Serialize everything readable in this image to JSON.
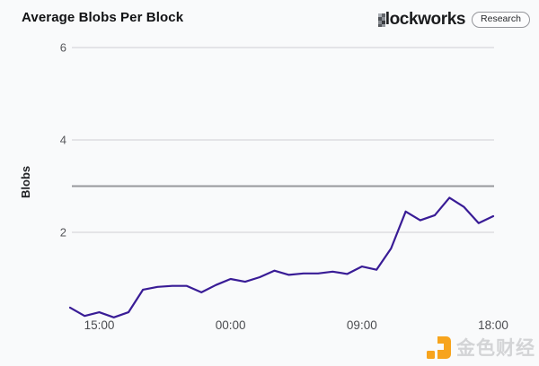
{
  "header": {
    "title": "Average Blobs Per Block",
    "brand": "Blockworks",
    "badge": "Research"
  },
  "watermark": {
    "text": "金色财经"
  },
  "colors": {
    "line": "#391c96",
    "grid": "#d7d8db",
    "reference_line": "#97989c",
    "axis_text": "#55565a",
    "background": "#f9fafb",
    "watermark_orange": "#f7a41d"
  },
  "chart_data": {
    "type": "line",
    "title": "Average Blobs Per Block",
    "xlabel": "",
    "ylabel": "Blobs",
    "grid": "horizontal",
    "legend_position": "none",
    "ylim": [
      0,
      6.6
    ],
    "y_ticks": [
      2,
      4,
      6
    ],
    "reference_line": {
      "value": 3,
      "note": "blob target line, darker gray, unlabeled"
    },
    "x_tick_labels": [
      "15:00",
      "00:00",
      "09:00",
      "18:00"
    ],
    "x_tick_indices": [
      2,
      11,
      20,
      29
    ],
    "x": [
      "13:00",
      "14:00",
      "15:00",
      "16:00",
      "17:00",
      "18:00",
      "19:00",
      "20:00",
      "21:00",
      "22:00",
      "23:00",
      "00:00",
      "01:00",
      "02:00",
      "03:00",
      "04:00",
      "05:00",
      "06:00",
      "07:00",
      "08:00",
      "09:00",
      "10:00",
      "11:00",
      "12:00",
      "13:00",
      "14:00",
      "15:00",
      "16:00",
      "17:00",
      "18:00"
    ],
    "series": [
      {
        "name": "Average Blobs Per Block",
        "color": "#391c96",
        "values": [
          0.37,
          0.19,
          0.27,
          0.16,
          0.27,
          0.76,
          0.82,
          0.84,
          0.84,
          0.7,
          0.86,
          0.99,
          0.93,
          1.03,
          1.17,
          1.08,
          1.11,
          1.11,
          1.15,
          1.1,
          1.26,
          1.19,
          1.65,
          2.45,
          2.26,
          2.37,
          2.75,
          2.55,
          2.2,
          2.35
        ]
      }
    ]
  }
}
